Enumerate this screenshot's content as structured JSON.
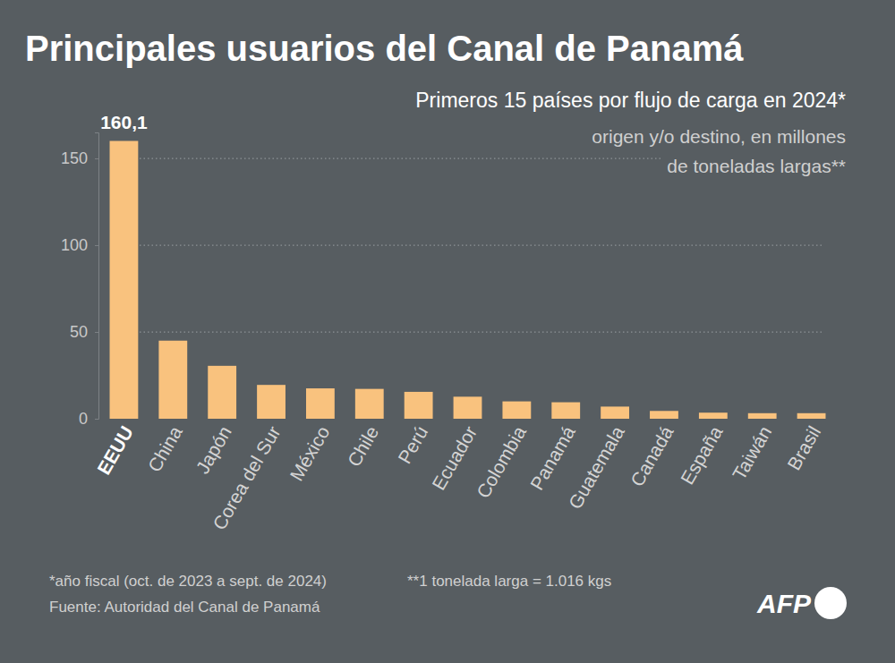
{
  "chart_data": {
    "type": "bar",
    "title": "Principales usuarios del Canal de Panamá",
    "subtitle": "Primeros 15 países por flujo de carga en 2024*",
    "annotations": [
      "origen y/o destino, en millones",
      "de toneladas largas**"
    ],
    "notes": [
      "*año fiscal (oct. de 2023 a sept. de 2024)",
      "**1 tonelada larga = 1.016 kgs"
    ],
    "source": "Fuente: Autoridad del Canal de Panamá",
    "logo": "AFP",
    "categories": [
      "EEUU",
      "China",
      "Japón",
      "Corea del Sur",
      "México",
      "Chile",
      "Perú",
      "Ecuador",
      "Colombia",
      "Panamá",
      "Guatemala",
      "Canadá",
      "España",
      "Taiwán",
      "Brasil"
    ],
    "values": [
      160.1,
      45,
      30.5,
      19.5,
      17.5,
      17.2,
      15.5,
      12.7,
      10,
      9.5,
      7,
      4.5,
      3.5,
      3.2,
      3.2
    ],
    "value_labels": [
      "160,1",
      null,
      null,
      null,
      null,
      null,
      null,
      null,
      null,
      null,
      null,
      null,
      null,
      null,
      null
    ],
    "data_labels": true,
    "color": "#f9c27e",
    "ylim": [
      0,
      165
    ],
    "yticks": [
      0,
      50,
      100,
      150
    ],
    "grid": true
  }
}
